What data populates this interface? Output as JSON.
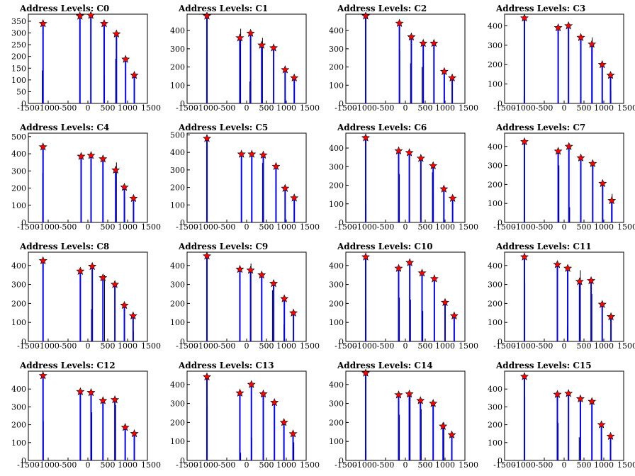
{
  "chart_data": [
    {
      "type": "bar",
      "title": "Address Levels: C0",
      "xlim": [
        -1500,
        1500
      ],
      "ylim": [
        0,
        380
      ],
      "yticks": [
        0,
        50,
        100,
        150,
        200,
        250,
        300,
        350
      ],
      "xticks": [
        -1500,
        -1000,
        -500,
        0,
        500,
        1000,
        1500
      ],
      "peaks": [
        {
          "x": -1130,
          "y": 340
        },
        {
          "x": -200,
          "y": 372
        },
        {
          "x": 75,
          "y": 375
        },
        {
          "x": 410,
          "y": 340
        },
        {
          "x": 720,
          "y": 296
        },
        {
          "x": 950,
          "y": 188
        },
        {
          "x": 1170,
          "y": 120
        }
      ],
      "spikes": [
        {
          "x": -1150,
          "y": 140
        },
        {
          "x": -1140,
          "y": 30
        },
        {
          "x": -200,
          "y": 170
        },
        {
          "x": 420,
          "y": 120
        },
        {
          "x": 700,
          "y": 190
        }
      ]
    },
    {
      "type": "bar",
      "title": "Address Levels: C1",
      "xlim": [
        -1500,
        1500
      ],
      "ylim": [
        0,
        490
      ],
      "yticks": [
        0,
        100,
        200,
        300,
        400
      ],
      "xticks": [
        -1500,
        -1000,
        -500,
        0,
        500,
        1000,
        1500
      ],
      "peaks": [
        {
          "x": -1000,
          "y": 480
        },
        {
          "x": -170,
          "y": 360
        },
        {
          "x": 100,
          "y": 385
        },
        {
          "x": 380,
          "y": 320
        },
        {
          "x": 680,
          "y": 305
        },
        {
          "x": 970,
          "y": 185
        },
        {
          "x": 1200,
          "y": 140
        }
      ],
      "spikes": [
        {
          "x": -1010,
          "y": 290
        },
        {
          "x": -150,
          "y": 410
        },
        {
          "x": 80,
          "y": 120
        },
        {
          "x": 400,
          "y": 360
        }
      ]
    },
    {
      "type": "bar",
      "title": "Address Levels: C2",
      "xlim": [
        -1500,
        1500
      ],
      "ylim": [
        0,
        490
      ],
      "yticks": [
        0,
        100,
        200,
        300,
        400
      ],
      "xticks": [
        -1500,
        -1000,
        -500,
        0,
        500,
        1000,
        1500
      ],
      "peaks": [
        {
          "x": -1000,
          "y": 480
        },
        {
          "x": -150,
          "y": 440
        },
        {
          "x": 150,
          "y": 365
        },
        {
          "x": 450,
          "y": 330
        },
        {
          "x": 720,
          "y": 330
        },
        {
          "x": 980,
          "y": 175
        },
        {
          "x": 1180,
          "y": 140
        }
      ],
      "spikes": [
        {
          "x": -140,
          "y": 290
        },
        {
          "x": 130,
          "y": 220
        },
        {
          "x": 420,
          "y": 200
        },
        {
          "x": 980,
          "y": 80
        }
      ]
    },
    {
      "type": "bar",
      "title": "Address Levels: C3",
      "xlim": [
        -1500,
        1500
      ],
      "ylim": [
        0,
        460
      ],
      "yticks": [
        0,
        100,
        200,
        300,
        400
      ],
      "xticks": [
        -1500,
        -1000,
        -500,
        0,
        500,
        1000,
        1500
      ],
      "peaks": [
        {
          "x": -1000,
          "y": 440
        },
        {
          "x": -150,
          "y": 390
        },
        {
          "x": 110,
          "y": 400
        },
        {
          "x": 420,
          "y": 340
        },
        {
          "x": 700,
          "y": 305
        },
        {
          "x": 960,
          "y": 200
        },
        {
          "x": 1170,
          "y": 145
        }
      ],
      "spikes": [
        {
          "x": -1010,
          "y": 40
        },
        {
          "x": 710,
          "y": 340
        },
        {
          "x": 960,
          "y": 60
        },
        {
          "x": 1180,
          "y": 65
        }
      ]
    },
    {
      "type": "bar",
      "title": "Address Levels: C4",
      "xlim": [
        -1500,
        1500
      ],
      "ylim": [
        0,
        520
      ],
      "yticks": [
        0,
        100,
        200,
        300,
        400,
        500
      ],
      "xticks": [
        -1500,
        -1000,
        -500,
        0,
        500,
        1000,
        1500
      ],
      "peaks": [
        {
          "x": -1130,
          "y": 440
        },
        {
          "x": -170,
          "y": 385
        },
        {
          "x": 80,
          "y": 390
        },
        {
          "x": 380,
          "y": 370
        },
        {
          "x": 700,
          "y": 305
        },
        {
          "x": 920,
          "y": 205
        },
        {
          "x": 1150,
          "y": 140
        }
      ],
      "spikes": [
        {
          "x": -1140,
          "y": 290
        },
        {
          "x": 720,
          "y": 350
        },
        {
          "x": 930,
          "y": 150
        }
      ]
    },
    {
      "type": "bar",
      "title": "Address Levels: C5",
      "xlim": [
        -1500,
        1500
      ],
      "ylim": [
        0,
        510
      ],
      "yticks": [
        0,
        100,
        200,
        300,
        400,
        500
      ],
      "xticks": [
        -1500,
        -1000,
        -500,
        0,
        500,
        1000,
        1500
      ],
      "peaks": [
        {
          "x": -1000,
          "y": 480
        },
        {
          "x": -130,
          "y": 390
        },
        {
          "x": 130,
          "y": 390
        },
        {
          "x": 420,
          "y": 385
        },
        {
          "x": 740,
          "y": 320
        },
        {
          "x": 970,
          "y": 195
        },
        {
          "x": 1200,
          "y": 140
        }
      ],
      "spikes": [
        {
          "x": -990,
          "y": 450
        },
        {
          "x": 400,
          "y": 340
        }
      ]
    },
    {
      "type": "bar",
      "title": "Address Levels: C6",
      "xlim": [
        -1500,
        1500
      ],
      "ylim": [
        0,
        480
      ],
      "yticks": [
        0,
        100,
        200,
        300,
        400
      ],
      "xticks": [
        -1500,
        -1000,
        -500,
        0,
        500,
        1000,
        1500
      ],
      "peaks": [
        {
          "x": -1000,
          "y": 455
        },
        {
          "x": -170,
          "y": 385
        },
        {
          "x": 100,
          "y": 375
        },
        {
          "x": 390,
          "y": 345
        },
        {
          "x": 700,
          "y": 305
        },
        {
          "x": 970,
          "y": 180
        },
        {
          "x": 1190,
          "y": 130
        }
      ],
      "spikes": [
        {
          "x": -990,
          "y": 100
        },
        {
          "x": -150,
          "y": 260
        },
        {
          "x": 680,
          "y": 270
        }
      ]
    },
    {
      "type": "bar",
      "title": "Address Levels: C7",
      "xlim": [
        -1500,
        1500
      ],
      "ylim": [
        0,
        470
      ],
      "yticks": [
        0,
        100,
        200,
        300,
        400
      ],
      "xticks": [
        -1500,
        -1000,
        -500,
        0,
        500,
        1000,
        1500
      ],
      "peaks": [
        {
          "x": -1000,
          "y": 425
        },
        {
          "x": -150,
          "y": 375
        },
        {
          "x": 120,
          "y": 400
        },
        {
          "x": 420,
          "y": 340
        },
        {
          "x": 720,
          "y": 310
        },
        {
          "x": 970,
          "y": 205
        },
        {
          "x": 1200,
          "y": 115
        }
      ],
      "spikes": [
        {
          "x": -130,
          "y": 300
        },
        {
          "x": 140,
          "y": 80
        },
        {
          "x": 1210,
          "y": 150
        }
      ]
    },
    {
      "type": "bar",
      "title": "Address Levels: C8",
      "xlim": [
        -1500,
        1500
      ],
      "ylim": [
        0,
        470
      ],
      "yticks": [
        0,
        100,
        200,
        300,
        400
      ],
      "xticks": [
        -1500,
        -1000,
        -500,
        0,
        500,
        1000,
        1500
      ],
      "peaks": [
        {
          "x": -1130,
          "y": 425
        },
        {
          "x": -190,
          "y": 370
        },
        {
          "x": 110,
          "y": 395
        },
        {
          "x": 380,
          "y": 335
        },
        {
          "x": 680,
          "y": 300
        },
        {
          "x": 920,
          "y": 190
        },
        {
          "x": 1140,
          "y": 135
        }
      ],
      "spikes": [
        {
          "x": 90,
          "y": 170
        },
        {
          "x": 420,
          "y": 350
        },
        {
          "x": 920,
          "y": 80
        },
        {
          "x": 1150,
          "y": 55
        }
      ]
    },
    {
      "type": "bar",
      "title": "Address Levels: C9",
      "xlim": [
        -1500,
        1500
      ],
      "ylim": [
        0,
        470
      ],
      "yticks": [
        0,
        100,
        200,
        300,
        400
      ],
      "xticks": [
        -1500,
        -1000,
        -500,
        0,
        500,
        1000,
        1500
      ],
      "peaks": [
        {
          "x": -1000,
          "y": 450
        },
        {
          "x": -170,
          "y": 380
        },
        {
          "x": 100,
          "y": 375
        },
        {
          "x": 380,
          "y": 350
        },
        {
          "x": 680,
          "y": 305
        },
        {
          "x": 950,
          "y": 225
        },
        {
          "x": 1180,
          "y": 150
        }
      ],
      "spikes": [
        {
          "x": 110,
          "y": 410
        },
        {
          "x": 650,
          "y": 270
        },
        {
          "x": 940,
          "y": 90
        }
      ]
    },
    {
      "type": "bar",
      "title": "Address Levels: C10",
      "xlim": [
        -1500,
        1500
      ],
      "ylim": [
        0,
        470
      ],
      "yticks": [
        0,
        100,
        200,
        300,
        400
      ],
      "xticks": [
        -1500,
        -1000,
        -500,
        0,
        500,
        1000,
        1500
      ],
      "peaks": [
        {
          "x": -1000,
          "y": 445
        },
        {
          "x": -170,
          "y": 385
        },
        {
          "x": 110,
          "y": 415
        },
        {
          "x": 420,
          "y": 360
        },
        {
          "x": 730,
          "y": 330
        },
        {
          "x": 1000,
          "y": 205
        },
        {
          "x": 1230,
          "y": 135
        }
      ],
      "spikes": [
        {
          "x": -990,
          "y": 170
        },
        {
          "x": -150,
          "y": 230
        },
        {
          "x": 130,
          "y": 220
        },
        {
          "x": 440,
          "y": 160
        }
      ]
    },
    {
      "type": "bar",
      "title": "Address Levels: C11",
      "xlim": [
        -1500,
        1500
      ],
      "ylim": [
        0,
        470
      ],
      "yticks": [
        0,
        100,
        200,
        300,
        400
      ],
      "xticks": [
        -1500,
        -1000,
        -500,
        0,
        500,
        1000,
        1500
      ],
      "peaks": [
        {
          "x": -1000,
          "y": 445
        },
        {
          "x": -170,
          "y": 405
        },
        {
          "x": 90,
          "y": 385
        },
        {
          "x": 390,
          "y": 315
        },
        {
          "x": 680,
          "y": 320
        },
        {
          "x": 960,
          "y": 195
        },
        {
          "x": 1180,
          "y": 130
        }
      ],
      "spikes": [
        {
          "x": -990,
          "y": 310
        },
        {
          "x": 80,
          "y": 80
        },
        {
          "x": 410,
          "y": 375
        },
        {
          "x": 700,
          "y": 250
        }
      ]
    },
    {
      "type": "bar",
      "title": "Address Levels: C12",
      "xlim": [
        -1500,
        1500
      ],
      "ylim": [
        0,
        500
      ],
      "yticks": [
        0,
        100,
        200,
        300,
        400
      ],
      "xticks": [
        -1500,
        -1000,
        -500,
        0,
        500,
        1000,
        1500
      ],
      "peaks": [
        {
          "x": -1130,
          "y": 475
        },
        {
          "x": -190,
          "y": 385
        },
        {
          "x": 80,
          "y": 380
        },
        {
          "x": 380,
          "y": 335
        },
        {
          "x": 680,
          "y": 340
        },
        {
          "x": 940,
          "y": 185
        },
        {
          "x": 1170,
          "y": 150
        }
      ],
      "spikes": [
        {
          "x": -1120,
          "y": 220
        },
        {
          "x": 100,
          "y": 270
        },
        {
          "x": 700,
          "y": 310
        }
      ]
    },
    {
      "type": "bar",
      "title": "Address Levels: C13",
      "xlim": [
        -1500,
        1500
      ],
      "ylim": [
        0,
        470
      ],
      "yticks": [
        0,
        100,
        200,
        300,
        400
      ],
      "xticks": [
        -1500,
        -1000,
        -500,
        0,
        500,
        1000,
        1500
      ],
      "peaks": [
        {
          "x": -1000,
          "y": 440
        },
        {
          "x": -170,
          "y": 355
        },
        {
          "x": 120,
          "y": 400
        },
        {
          "x": 420,
          "y": 350
        },
        {
          "x": 700,
          "y": 305
        },
        {
          "x": 940,
          "y": 200
        },
        {
          "x": 1170,
          "y": 140
        }
      ],
      "spikes": [
        {
          "x": -990,
          "y": 285
        },
        {
          "x": -150,
          "y": 40
        },
        {
          "x": 130,
          "y": 120
        },
        {
          "x": 1190,
          "y": 95
        }
      ]
    },
    {
      "type": "bar",
      "title": "Address Levels: C14",
      "xlim": [
        -1500,
        1500
      ],
      "ylim": [
        0,
        470
      ],
      "yticks": [
        0,
        100,
        200,
        300,
        400
      ],
      "xticks": [
        -1500,
        -1000,
        -500,
        0,
        500,
        1000,
        1500
      ],
      "peaks": [
        {
          "x": -1000,
          "y": 460
        },
        {
          "x": -170,
          "y": 345
        },
        {
          "x": 100,
          "y": 350
        },
        {
          "x": 380,
          "y": 315
        },
        {
          "x": 700,
          "y": 300
        },
        {
          "x": 950,
          "y": 180
        },
        {
          "x": 1170,
          "y": 135
        }
      ],
      "spikes": [
        {
          "x": -990,
          "y": 60
        },
        {
          "x": -150,
          "y": 240
        },
        {
          "x": 120,
          "y": 360
        },
        {
          "x": 400,
          "y": 270
        },
        {
          "x": 950,
          "y": 80
        },
        {
          "x": 970,
          "y": 200
        }
      ]
    },
    {
      "type": "bar",
      "title": "Address Levels: C15",
      "xlim": [
        -1500,
        1500
      ],
      "ylim": [
        0,
        500
      ],
      "yticks": [
        0,
        100,
        200,
        300,
        400
      ],
      "xticks": [
        -1500,
        -1000,
        -500,
        0,
        500,
        1000,
        1500
      ],
      "peaks": [
        {
          "x": -1000,
          "y": 470
        },
        {
          "x": -170,
          "y": 370
        },
        {
          "x": 110,
          "y": 375
        },
        {
          "x": 410,
          "y": 345
        },
        {
          "x": 700,
          "y": 330
        },
        {
          "x": 940,
          "y": 200
        },
        {
          "x": 1170,
          "y": 135
        }
      ],
      "spikes": [
        {
          "x": -990,
          "y": 360
        },
        {
          "x": -150,
          "y": 210
        },
        {
          "x": 380,
          "y": 130
        }
      ]
    }
  ]
}
